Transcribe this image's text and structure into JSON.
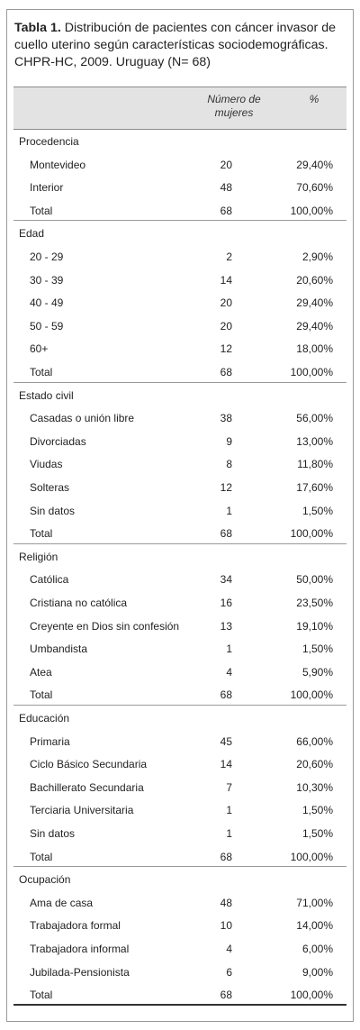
{
  "caption": {
    "label": "Tabla 1.",
    "text": " Distribución de pacientes con cáncer invasor de cuello uterino según características sociodemográficas. CHPR-HC, 2009. Uruguay (N= 68)"
  },
  "columns": {
    "number": "Número de mujeres",
    "percent": "%"
  },
  "sections": [
    {
      "title": "Procedencia",
      "rows": [
        {
          "label": "Montevideo",
          "n": "20",
          "pct": "29,40%"
        },
        {
          "label": "Interior",
          "n": "48",
          "pct": "70,60%"
        }
      ],
      "total": {
        "label": "Total",
        "n": "68",
        "pct": "100,00%"
      }
    },
    {
      "title": "Edad",
      "rows": [
        {
          "label": "20 - 29",
          "n": "2",
          "pct": "2,90%"
        },
        {
          "label": "30 - 39",
          "n": "14",
          "pct": "20,60%"
        },
        {
          "label": "40 - 49",
          "n": "20",
          "pct": "29,40%"
        },
        {
          "label": "50 - 59",
          "n": "20",
          "pct": "29,40%"
        },
        {
          "label": "60+",
          "n": "12",
          "pct": "18,00%"
        }
      ],
      "total": {
        "label": "Total",
        "n": "68",
        "pct": "100,00%"
      }
    },
    {
      "title": "Estado civil",
      "rows": [
        {
          "label": "Casadas o unión libre",
          "n": "38",
          "pct": "56,00%"
        },
        {
          "label": "Divorciadas",
          "n": "9",
          "pct": "13,00%"
        },
        {
          "label": "Viudas",
          "n": "8",
          "pct": "11,80%"
        },
        {
          "label": "Solteras",
          "n": "12",
          "pct": "17,60%"
        },
        {
          "label": "Sin datos",
          "n": "1",
          "pct": "1,50%"
        }
      ],
      "total": {
        "label": "Total",
        "n": "68",
        "pct": "100,00%"
      }
    },
    {
      "title": "Religión",
      "rows": [
        {
          "label": "Católica",
          "n": "34",
          "pct": "50,00%"
        },
        {
          "label": "Cristiana no católica",
          "n": "16",
          "pct": "23,50%"
        },
        {
          "label": "Creyente en Dios sin confesión",
          "n": "13",
          "pct": "19,10%"
        },
        {
          "label": "Umbandista",
          "n": "1",
          "pct": "1,50%"
        },
        {
          "label": "Atea",
          "n": "4",
          "pct": "5,90%"
        }
      ],
      "total": {
        "label": "Total",
        "n": "68",
        "pct": "100,00%"
      }
    },
    {
      "title": "Educación",
      "rows": [
        {
          "label": "Primaria",
          "n": "45",
          "pct": "66,00%"
        },
        {
          "label": "Ciclo Básico Secundaria",
          "n": "14",
          "pct": "20,60%"
        },
        {
          "label": "Bachillerato Secundaria",
          "n": "7",
          "pct": "10,30%"
        },
        {
          "label": "Terciaria Universitaria",
          "n": "1",
          "pct": "1,50%"
        },
        {
          "label": "Sin datos",
          "n": "1",
          "pct": "1,50%"
        }
      ],
      "total": {
        "label": "Total",
        "n": "68",
        "pct": "100,00%"
      }
    },
    {
      "title": "Ocupación",
      "rows": [
        {
          "label": "Ama de casa",
          "n": "48",
          "pct": "71,00%"
        },
        {
          "label": "Trabajadora formal",
          "n": "10",
          "pct": "14,00%"
        },
        {
          "label": "Trabajadora informal",
          "n": "4",
          "pct": "6,00%"
        },
        {
          "label": "Jubilada-Pensionista",
          "n": "6",
          "pct": "9,00%"
        }
      ],
      "total": {
        "label": "Total",
        "n": "68",
        "pct": "100,00%"
      }
    }
  ]
}
